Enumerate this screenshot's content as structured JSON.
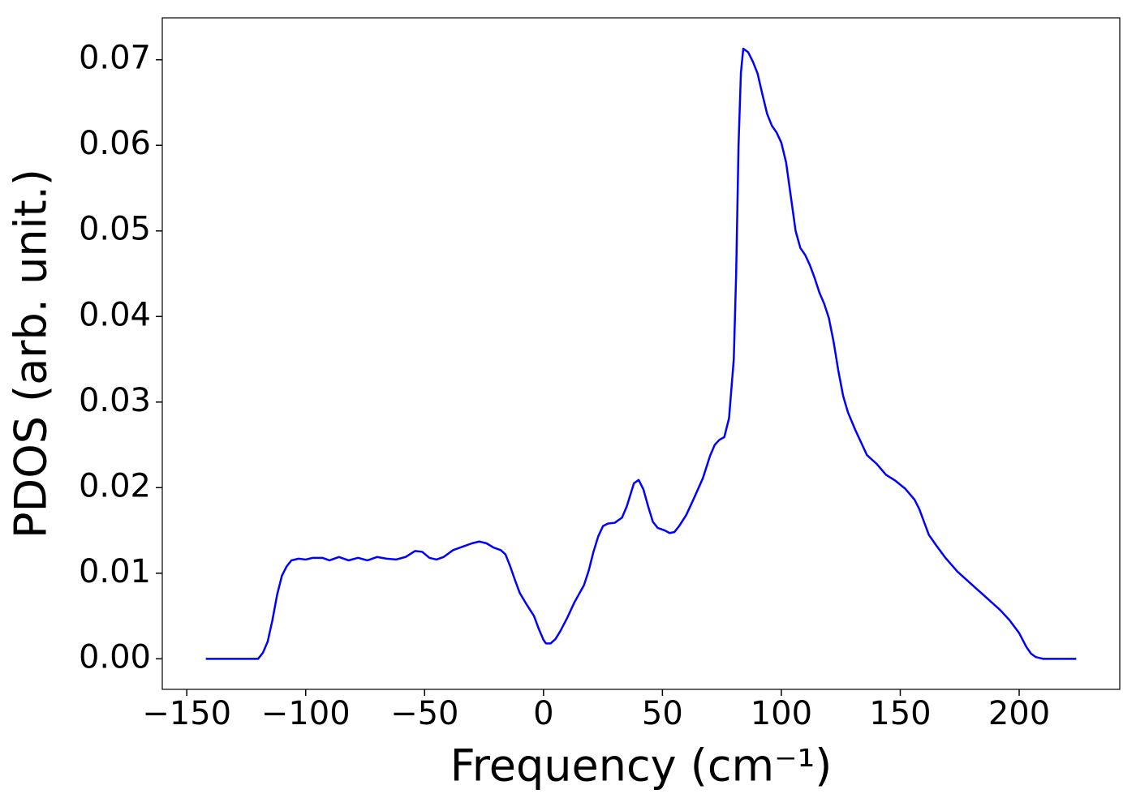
{
  "chart_data": {
    "type": "line",
    "xlabel": "Frequency (cm⁻¹)",
    "ylabel": "PDOS (arb. unit.)",
    "xlim": [
      -160.3,
      242.3
    ],
    "ylim": [
      -0.00357,
      0.0749
    ],
    "xticks": [
      {
        "value": -150,
        "label": "−150"
      },
      {
        "value": -100,
        "label": "−100"
      },
      {
        "value": -50,
        "label": "−50"
      },
      0,
      50,
      100,
      150,
      200
    ],
    "yticks": [
      {
        "value": 0,
        "label": "0.00"
      },
      {
        "value": 0.01,
        "label": "0.01"
      },
      {
        "value": 0.02,
        "label": "0.02"
      },
      {
        "value": 0.03,
        "label": "0.03"
      },
      {
        "value": 0.04,
        "label": "0.04"
      },
      {
        "value": 0.05,
        "label": "0.05"
      },
      {
        "value": 0.06,
        "label": "0.06"
      },
      {
        "value": 0.07,
        "label": "0.07"
      }
    ],
    "x": [
      -142,
      -120,
      -118,
      -116,
      -114,
      -112,
      -110,
      -108,
      -106,
      -103,
      -100,
      -97,
      -93,
      -90,
      -86,
      -82,
      -78,
      -74,
      -70,
      -66,
      -62,
      -58,
      -54,
      -51,
      -48,
      -45,
      -42,
      -38,
      -34,
      -30,
      -27,
      -24,
      -21,
      -18,
      -16,
      -14,
      -12,
      -10,
      -7,
      -4,
      -2,
      0,
      1,
      3,
      5,
      7,
      10,
      13,
      17,
      19,
      21,
      23,
      25,
      27,
      30,
      33,
      35,
      37,
      38,
      40,
      42,
      44,
      46,
      48,
      51,
      53,
      55,
      57,
      60,
      63,
      67,
      70,
      72,
      74,
      76,
      78,
      80,
      81,
      82,
      83,
      84,
      86,
      88,
      90,
      92,
      94,
      96,
      98,
      100,
      102,
      104,
      106,
      108,
      110,
      112,
      114,
      116,
      118,
      120,
      122,
      124,
      126,
      128,
      131,
      134,
      136,
      140,
      144,
      148,
      152,
      156,
      158,
      160,
      162,
      165,
      169,
      174,
      180,
      186,
      192,
      196,
      200,
      203,
      205,
      207,
      210,
      224
    ],
    "series": [
      {
        "name": "PDOS",
        "color": "#0000ff",
        "values": [
          0,
          0,
          0.0007,
          0.002,
          0.0045,
          0.0075,
          0.0097,
          0.0108,
          0.0115,
          0.0117,
          0.0116,
          0.0118,
          0.0118,
          0.0115,
          0.0119,
          0.0115,
          0.0118,
          0.0115,
          0.0119,
          0.0117,
          0.0116,
          0.0119,
          0.0126,
          0.0125,
          0.0118,
          0.0116,
          0.0119,
          0.0127,
          0.0131,
          0.0135,
          0.0137,
          0.0135,
          0.013,
          0.0127,
          0.0122,
          0.0108,
          0.0092,
          0.0077,
          0.0063,
          0.005,
          0.0035,
          0.0022,
          0.0018,
          0.0018,
          0.0023,
          0.0032,
          0.0048,
          0.0066,
          0.0086,
          0.0103,
          0.0125,
          0.0143,
          0.0155,
          0.0158,
          0.0159,
          0.0165,
          0.0178,
          0.0196,
          0.0205,
          0.0209,
          0.0198,
          0.0178,
          0.016,
          0.0153,
          0.015,
          0.0147,
          0.0148,
          0.0155,
          0.0168,
          0.0186,
          0.0211,
          0.0237,
          0.025,
          0.0256,
          0.0259,
          0.0281,
          0.035,
          0.045,
          0.06,
          0.0685,
          0.0713,
          0.0709,
          0.0698,
          0.0684,
          0.066,
          0.0637,
          0.0623,
          0.0615,
          0.0603,
          0.058,
          0.054,
          0.05,
          0.048,
          0.0472,
          0.046,
          0.0445,
          0.0428,
          0.0415,
          0.0398,
          0.037,
          0.0336,
          0.0307,
          0.0288,
          0.0268,
          0.025,
          0.0238,
          0.0228,
          0.0215,
          0.0208,
          0.0199,
          0.0186,
          0.0175,
          0.016,
          0.0145,
          0.0133,
          0.0118,
          0.0102,
          0.0087,
          0.0072,
          0.0057,
          0.0045,
          0.003,
          0.0014,
          0.0006,
          0.0002,
          0,
          0
        ]
      }
    ]
  }
}
